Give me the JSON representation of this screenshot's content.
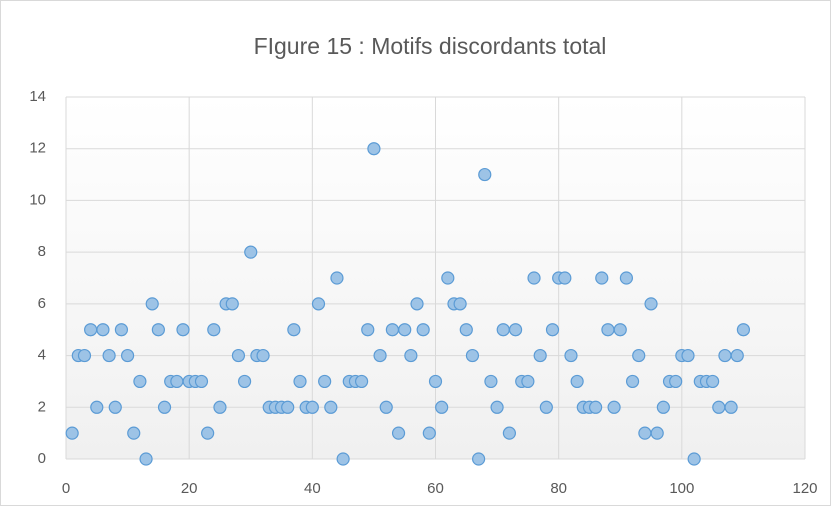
{
  "chart_data": {
    "type": "scatter",
    "title": "FIgure 15 : Motifs discordants total",
    "x": [
      1,
      2,
      3,
      4,
      5,
      6,
      7,
      8,
      9,
      10,
      11,
      12,
      13,
      14,
      15,
      16,
      17,
      18,
      19,
      20,
      21,
      22,
      23,
      24,
      25,
      26,
      27,
      28,
      29,
      30,
      31,
      32,
      33,
      34,
      35,
      36,
      37,
      38,
      39,
      40,
      41,
      42,
      43,
      44,
      45,
      46,
      47,
      48,
      49,
      50,
      51,
      52,
      53,
      54,
      55,
      56,
      57,
      58,
      59,
      60,
      61,
      62,
      63,
      64,
      65,
      66,
      67,
      68,
      69,
      70,
      71,
      72,
      73,
      74,
      75,
      76,
      77,
      78,
      79,
      80,
      81,
      82,
      83,
      84,
      85,
      86,
      87,
      88,
      89,
      90,
      91,
      92,
      93,
      94,
      95,
      96,
      97,
      98,
      99,
      100,
      101,
      102,
      103,
      104,
      105,
      106,
      107,
      108,
      109,
      110
    ],
    "values": [
      1,
      4,
      4,
      5,
      2,
      5,
      4,
      2,
      5,
      4,
      1,
      3,
      0,
      6,
      5,
      2,
      3,
      3,
      5,
      3,
      3,
      3,
      1,
      5,
      2,
      6,
      6,
      4,
      3,
      8,
      4,
      4,
      2,
      2,
      2,
      2,
      5,
      3,
      2,
      2,
      6,
      3,
      2,
      7,
      0,
      3,
      3,
      3,
      5,
      12,
      4,
      2,
      5,
      1,
      5,
      4,
      6,
      5,
      1,
      3,
      2,
      7,
      6,
      6,
      5,
      4,
      0,
      11,
      3,
      2,
      5,
      1,
      5,
      3,
      3,
      7,
      4,
      2,
      5,
      7,
      7,
      4,
      3,
      2,
      2,
      2,
      7,
      5,
      2,
      5,
      7,
      3,
      4,
      1,
      6,
      1,
      2,
      3,
      3,
      4,
      4,
      0,
      3,
      3,
      3,
      2,
      4,
      2,
      4,
      5
    ],
    "color": "#9dc3e6",
    "edge_color": "#5b9bd5",
    "xlim": [
      0,
      120
    ],
    "xticks": [
      0,
      20,
      40,
      60,
      80,
      100,
      120
    ],
    "ylim": [
      0,
      14
    ],
    "yticks": [
      0,
      2,
      4,
      6,
      8,
      10,
      12,
      14
    ],
    "grid": true
  }
}
